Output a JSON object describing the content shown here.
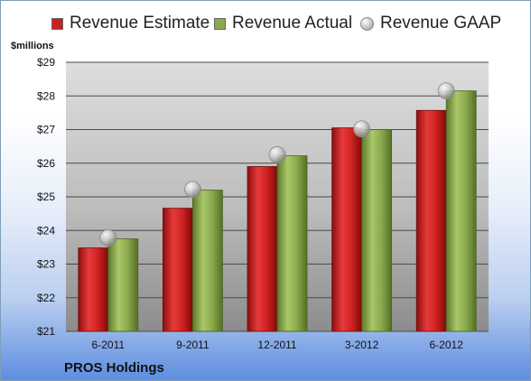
{
  "chart_data": {
    "type": "bar",
    "ylabel": "$millions",
    "categories": [
      "6-2011",
      "9-2011",
      "12-2011",
      "3-2012",
      "6-2012"
    ],
    "ylim": [
      21,
      29
    ],
    "yticks": [
      "$21",
      "$22",
      "$23",
      "$24",
      "$25",
      "$26",
      "$27",
      "$28",
      "$29"
    ],
    "grid": true,
    "legend": "top",
    "series": [
      {
        "name": "Revenue Estimate",
        "type": "bar",
        "color": "#cc1f1f",
        "values": [
          23.48,
          24.66,
          25.9,
          27.05,
          27.57
        ]
      },
      {
        "name": "Revenue Actual",
        "type": "bar",
        "color": "#8aab4c",
        "values": [
          23.75,
          25.2,
          26.22,
          27.0,
          28.15
        ]
      },
      {
        "name": "Revenue GAAP",
        "type": "marker",
        "color": "#b5b5b5",
        "values": [
          23.78,
          25.22,
          26.25,
          27.02,
          28.15
        ]
      }
    ]
  },
  "footer": {
    "company": "PROS Holdings"
  }
}
